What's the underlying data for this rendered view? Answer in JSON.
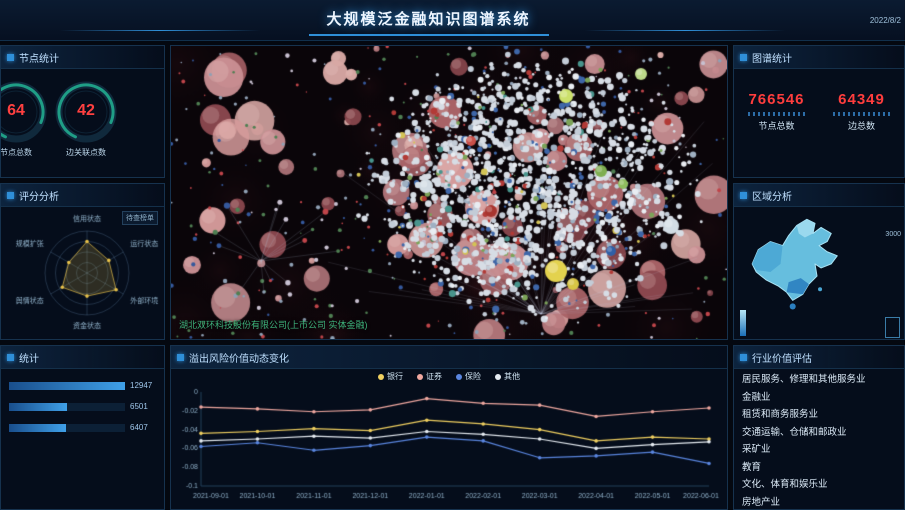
{
  "header": {
    "title": "大规模泛金融知识图谱系统",
    "date": "2022/8/2"
  },
  "left_stats": {
    "title": "节点统计",
    "gauges": [
      {
        "value": "64",
        "label": "节点总数"
      },
      {
        "value": "42",
        "label": "边关联点数"
      }
    ]
  },
  "radar_panel": {
    "title": "评分分析",
    "tag": "待查榜单",
    "chart_data": {
      "type": "radar",
      "labels": [
        "信用状态",
        "运行状态",
        "外部环境",
        "资金状态",
        "舆情状态",
        "规模扩张"
      ],
      "values": [
        0.75,
        0.6,
        0.8,
        0.55,
        0.68,
        0.5
      ],
      "max": 1
    }
  },
  "bar_panel": {
    "title": "统计",
    "chart_data": {
      "type": "bar",
      "values": [
        12947,
        6501,
        6407
      ],
      "xlim": [
        0,
        13000
      ]
    }
  },
  "graph_panel": {
    "node_label": "湖北双环科技股份有限公司(上市公司 实体金融)"
  },
  "risk_chart": {
    "title": "溢出风险价值动态变化",
    "chart_data": {
      "type": "line",
      "x": [
        "2021-09-01",
        "2021-10-01",
        "2021-11-01",
        "2021-12-01",
        "2022-01-01",
        "2022-02-01",
        "2022-03-01",
        "2022-04-01",
        "2022-05-01",
        "2022-06-01"
      ],
      "y_ticks": [
        "0",
        "-0.02",
        "-0.04",
        "-0.06",
        "-0.08",
        "-0.1"
      ],
      "ylim": [
        -0.1,
        0
      ],
      "series": [
        {
          "name": "银行",
          "color": "#f0d060",
          "values": [
            -0.044,
            -0.042,
            -0.039,
            -0.041,
            -0.03,
            -0.034,
            -0.04,
            -0.052,
            -0.048,
            -0.05
          ]
        },
        {
          "name": "证券",
          "color": "#f0a8a0",
          "values": [
            -0.016,
            -0.018,
            -0.021,
            -0.019,
            -0.007,
            -0.012,
            -0.014,
            -0.026,
            -0.021,
            -0.017
          ]
        },
        {
          "name": "保险",
          "color": "#5a86e0",
          "values": [
            -0.058,
            -0.054,
            -0.062,
            -0.057,
            -0.048,
            -0.052,
            -0.07,
            -0.068,
            -0.064,
            -0.076
          ]
        },
        {
          "name": "其他",
          "color": "#e6ecf2",
          "values": [
            -0.052,
            -0.05,
            -0.047,
            -0.049,
            -0.042,
            -0.045,
            -0.05,
            -0.06,
            -0.056,
            -0.053
          ]
        }
      ],
      "legend_position": "top"
    }
  },
  "graph_stats": {
    "title": "图谱统计",
    "items": [
      {
        "value": "766546",
        "label": "节点总数"
      },
      {
        "value": "64349",
        "label": "边总数"
      }
    ]
  },
  "region": {
    "title": "区域分析",
    "scale_max": "3000"
  },
  "industry": {
    "title": "行业价值评估",
    "items": [
      "居民服务、修理和其他服务业",
      "金融业",
      "租赁和商务服务业",
      "交通运输、仓储和邮政业",
      "采矿业",
      "教育",
      "文化、体育和娱乐业",
      "房地产业"
    ]
  }
}
